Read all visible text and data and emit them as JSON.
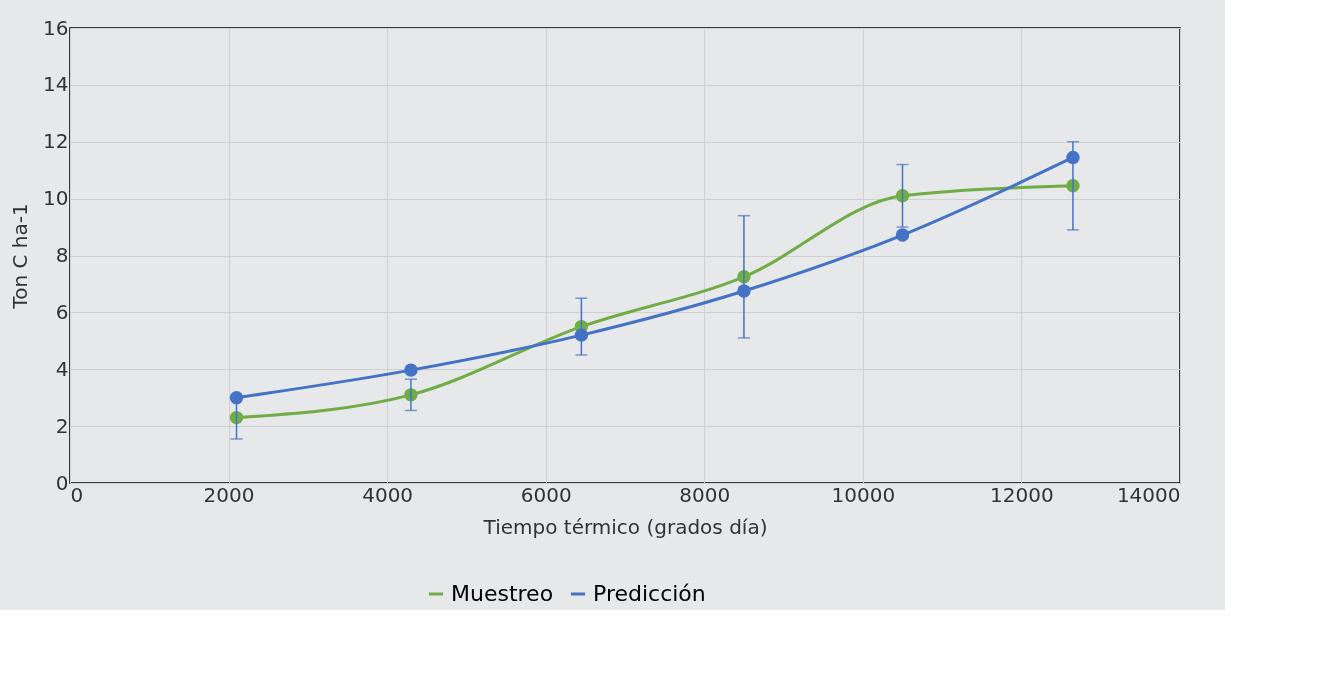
{
  "chart_data": {
    "type": "line",
    "xlabel": "Tiempo térmico (grados día)",
    "ylabel": "Ton C ha-1",
    "x": [
      2100,
      4300,
      6450,
      8500,
      10500,
      12650
    ],
    "series": [
      {
        "name": "Muestreo",
        "color": "#70ad47",
        "values": [
          2.3,
          3.1,
          5.5,
          7.25,
          10.1,
          10.45
        ],
        "errors": [
          0.75,
          0.55,
          1.0,
          2.15,
          1.1,
          1.55
        ]
      },
      {
        "name": "Predicción",
        "color": "#4472c4",
        "values": [
          3.0,
          3.97,
          5.2,
          6.75,
          8.72,
          11.45
        ]
      }
    ],
    "xlim": [
      0,
      14000
    ],
    "xticks": [
      0,
      2000,
      4000,
      6000,
      8000,
      10000,
      12000,
      14000
    ],
    "ylim": [
      0,
      16
    ],
    "yticks": [
      0,
      2,
      4,
      6,
      8,
      10,
      12,
      14,
      16
    ],
    "grid": true,
    "legend": "bottom",
    "marker": "circle"
  }
}
